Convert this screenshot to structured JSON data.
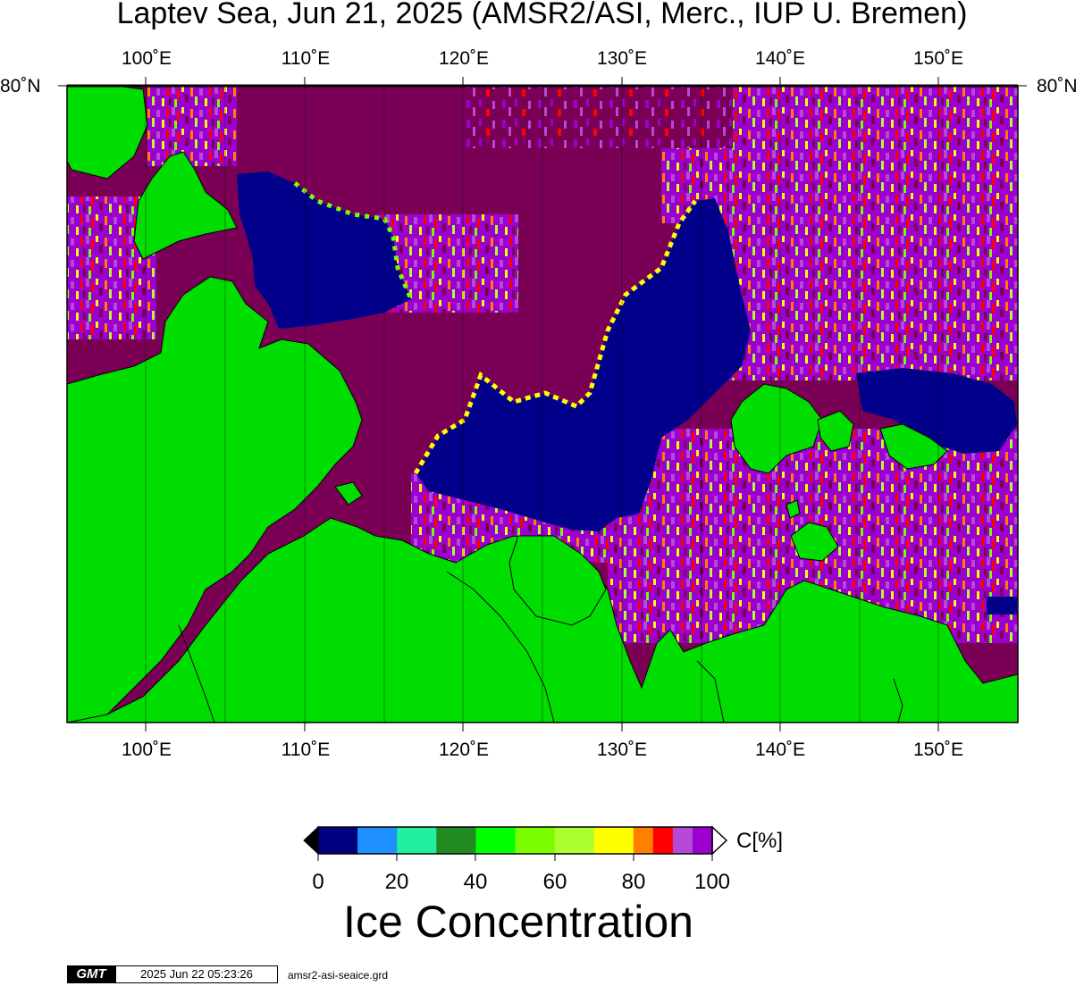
{
  "title": "Laptev Sea, Jun 21, 2025 (AMSR2/ASI, Merc., IUP U. Bremen)",
  "map": {
    "lon_ticks": [
      "100˚E",
      "110˚E",
      "120˚E",
      "130˚E",
      "140˚E",
      "150˚E"
    ],
    "lat_label_left": "80˚N",
    "lat_label_right": "80˚N",
    "lon_range": [
      95,
      155
    ],
    "colors": {
      "land": "#00dd00",
      "water_open": "#00008b",
      "ice_full": "#7a0055",
      "ice_high": "#9b00d0",
      "ice_90": "#b54ad8",
      "ice_85": "#ff0000",
      "ice_80": "#ff8000",
      "ice_75": "#ffff00"
    }
  },
  "colorbar": {
    "ticks": [
      "0",
      "20",
      "40",
      "60",
      "80",
      "100"
    ],
    "unit": "C[%]",
    "label": "Ice Concentration",
    "colors": [
      "#000080",
      "#1e90ff",
      "#20f0a0",
      "#228b22",
      "#00ff00",
      "#7cfc00",
      "#adff2f",
      "#ffff00",
      "#ff7f00",
      "#ff0000",
      "#b54ad8",
      "#9b00d0"
    ]
  },
  "footer": {
    "logo": "GMT",
    "timestamp": "2025 Jun 22 05:23:26",
    "filename": "amsr2-asi-seaice.grd"
  }
}
